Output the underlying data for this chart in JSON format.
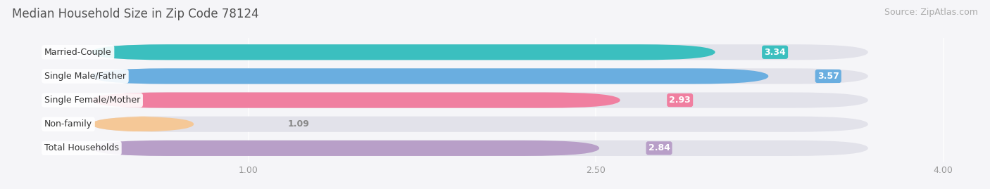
{
  "title": "Median Household Size in Zip Code 78124",
  "source": "Source: ZipAtlas.com",
  "categories": [
    "Married-Couple",
    "Single Male/Father",
    "Single Female/Mother",
    "Non-family",
    "Total Households"
  ],
  "values": [
    3.34,
    3.57,
    2.93,
    1.09,
    2.84
  ],
  "bar_colors": [
    "#3bbfbf",
    "#6aaee0",
    "#f07fa0",
    "#f5c897",
    "#b89fc8"
  ],
  "bg_color": "#f5f5f8",
  "bar_bg_color": "#e2e2ea",
  "xmin": 0.0,
  "xmax": 4.0,
  "xticks": [
    1.0,
    2.5,
    4.0
  ],
  "label_color_inside": "#ffffff",
  "title_fontsize": 12,
  "source_fontsize": 9,
  "bar_label_fontsize": 9,
  "tick_label_fontsize": 9,
  "category_fontsize": 9,
  "bar_height": 0.65,
  "bar_gap": 0.35
}
